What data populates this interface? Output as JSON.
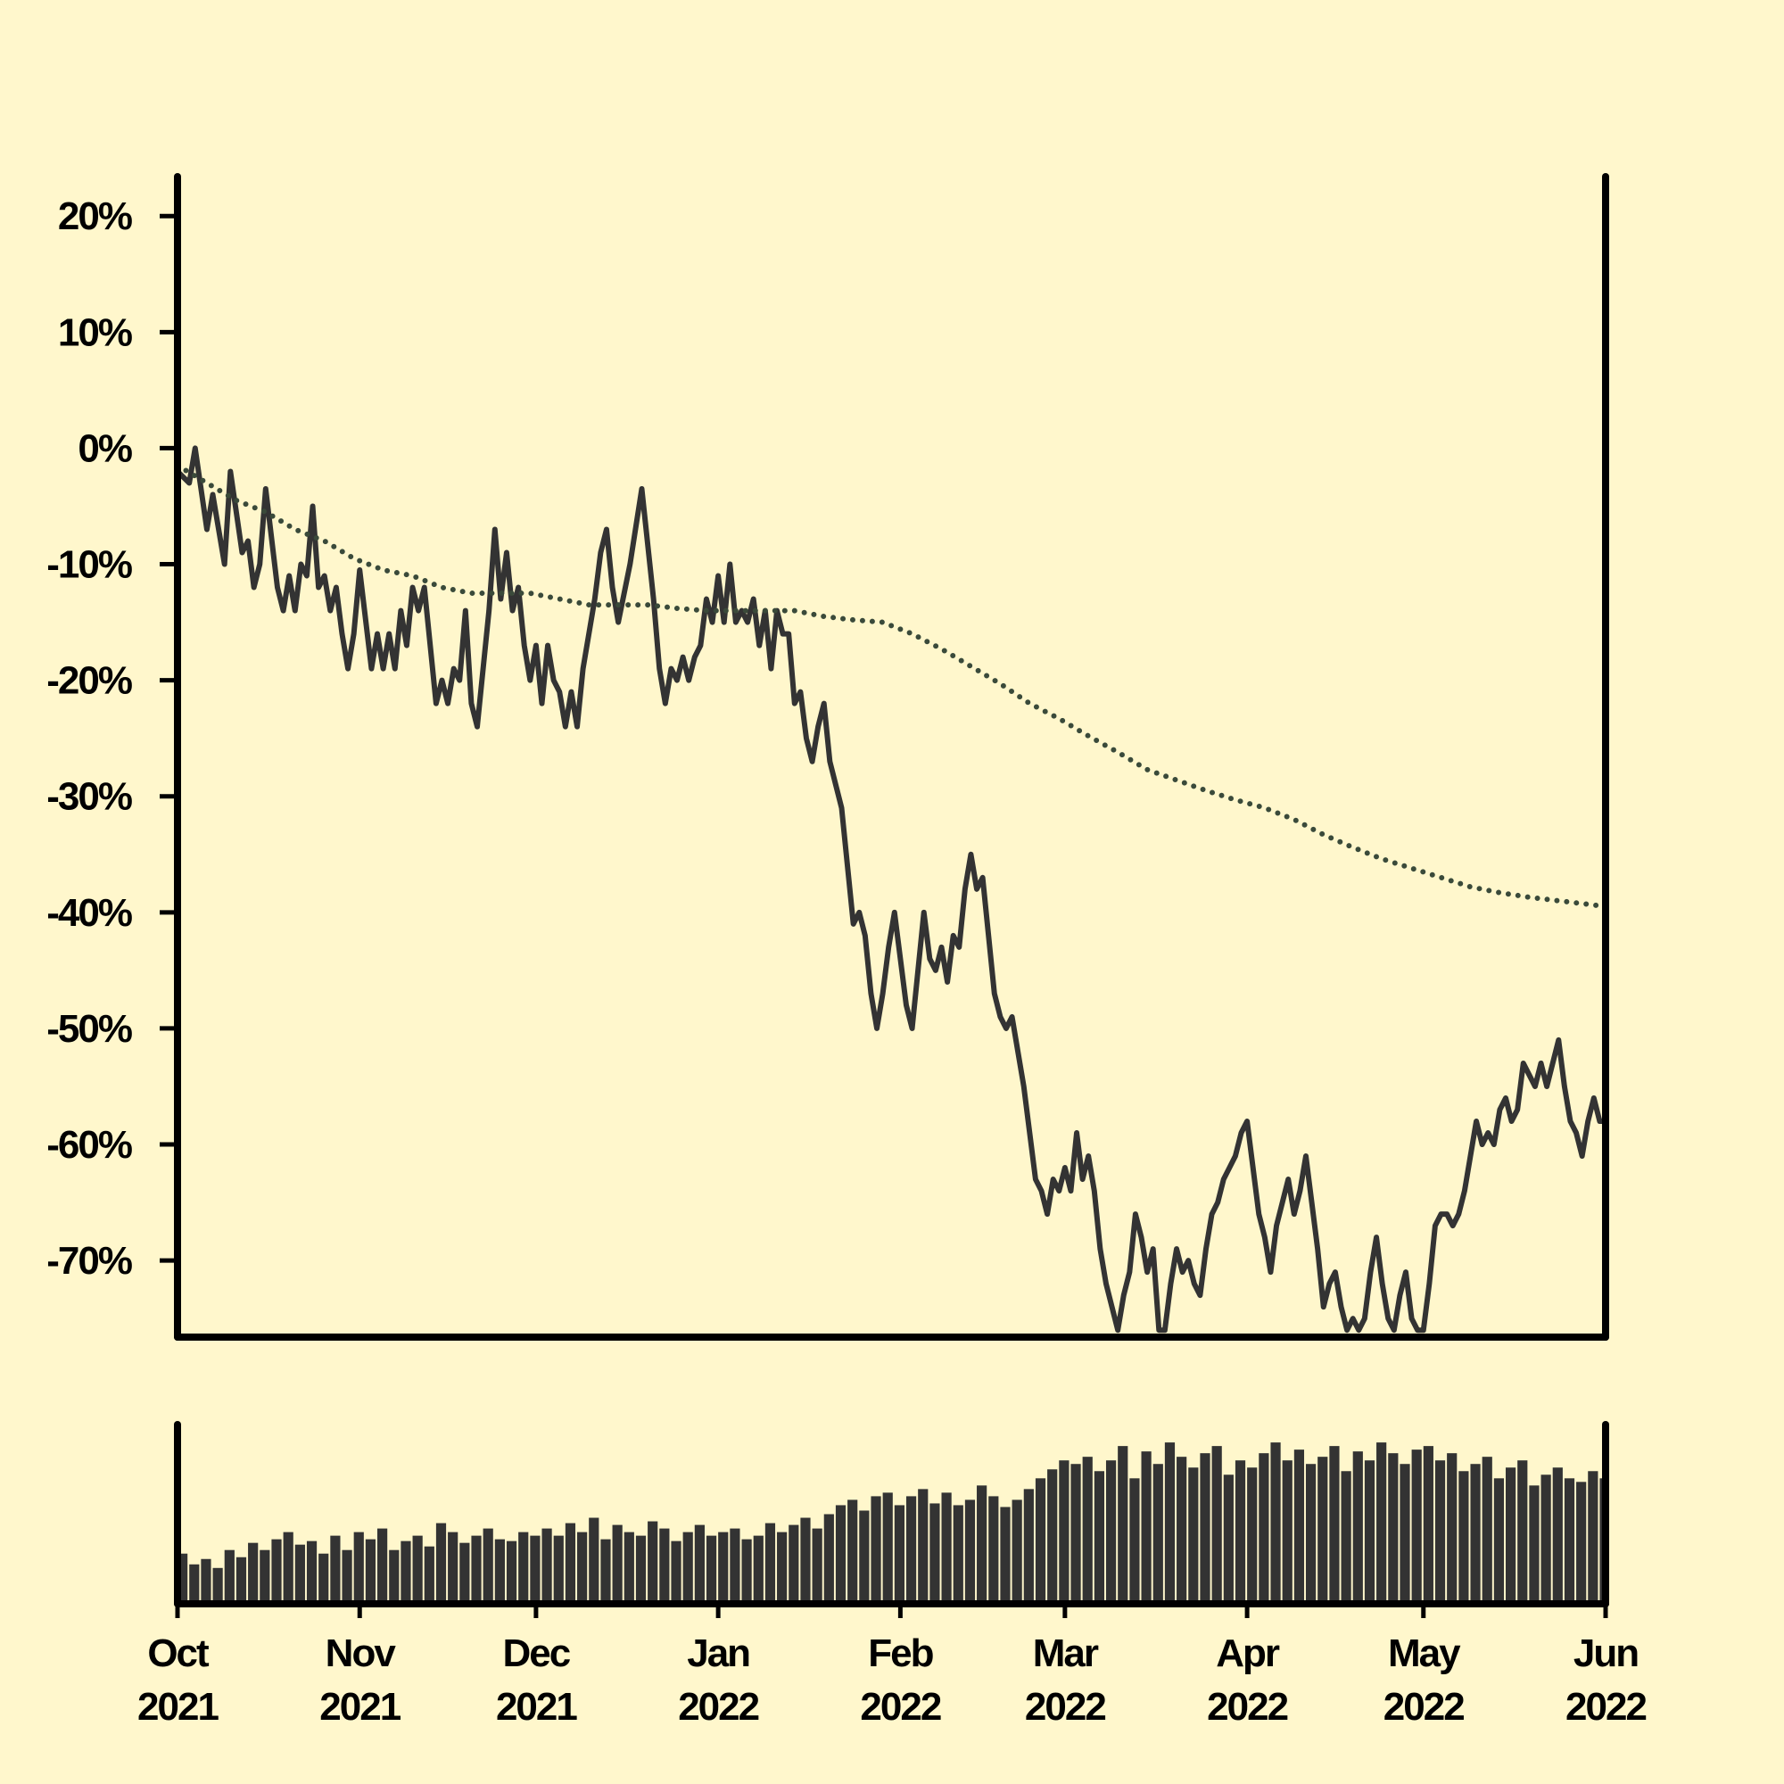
{
  "chart_data": [
    {
      "type": "line",
      "xlim": [
        0,
        243
      ],
      "ylim": [
        -76.6,
        23.4
      ],
      "yticks": [
        {
          "value": 20,
          "label": "20%"
        },
        {
          "value": 10,
          "label": "10%"
        },
        {
          "value": 0,
          "label": "0%"
        },
        {
          "value": -10,
          "label": "-10%"
        },
        {
          "value": -20,
          "label": "-20%"
        },
        {
          "value": -30,
          "label": "-30%"
        },
        {
          "value": -40,
          "label": "-40%"
        },
        {
          "value": -50,
          "label": "-50%"
        },
        {
          "value": -60,
          "label": "-60%"
        },
        {
          "value": -70,
          "label": "-70%"
        }
      ],
      "series": [
        {
          "color": "#333333",
          "style": "solid",
          "x": [
            0,
            2,
            3,
            5,
            6,
            8,
            9,
            11,
            12,
            13,
            14,
            15,
            17,
            18,
            19,
            20,
            21,
            22,
            23,
            24,
            25,
            26,
            27,
            28,
            29,
            30,
            31,
            33,
            34,
            35,
            36,
            37,
            38,
            39,
            40,
            41,
            42,
            43,
            44,
            45,
            46,
            47,
            48,
            49,
            50,
            51,
            53,
            54,
            55,
            56,
            57,
            58,
            59,
            60,
            61,
            62,
            63,
            64,
            65,
            66,
            67,
            68,
            69,
            71,
            72,
            73,
            74,
            75,
            77,
            79,
            81,
            82,
            83,
            84,
            85,
            86,
            87,
            88,
            89,
            90,
            91,
            92,
            93,
            94,
            95,
            96,
            97,
            98,
            99,
            100,
            101,
            102,
            103,
            104,
            105,
            106,
            107,
            108,
            109,
            110,
            111,
            112,
            113,
            115,
            116,
            117,
            118,
            119,
            120,
            121,
            122,
            124,
            125,
            126,
            127,
            128,
            129,
            130,
            131,
            132,
            133,
            134,
            135,
            136,
            137,
            138,
            139,
            140,
            141,
            142,
            143,
            144,
            145,
            146,
            147,
            148,
            149,
            150,
            151,
            152,
            153,
            154,
            155,
            156,
            157,
            158,
            159,
            160,
            161,
            162,
            163,
            164,
            165,
            166,
            167,
            168,
            169,
            170,
            171,
            172,
            173,
            174,
            175,
            176,
            177,
            178,
            179,
            180,
            181,
            182,
            183,
            184,
            185,
            186,
            187,
            188,
            189,
            190,
            191,
            192,
            193,
            194,
            195,
            196,
            197,
            198,
            199,
            200,
            201,
            202,
            203,
            204,
            205,
            206,
            207,
            208,
            209,
            210,
            211,
            212,
            213,
            214,
            215,
            216,
            217,
            218,
            219,
            220,
            221,
            222,
            223,
            224,
            225,
            226,
            227,
            228,
            229,
            230,
            231,
            232,
            233,
            234,
            235,
            236,
            237,
            238,
            239,
            240,
            241,
            242,
            243
          ],
          "values": [
            -2,
            -3,
            0,
            -7,
            -4,
            -10,
            -2,
            -9,
            -8,
            -12,
            -10,
            -3.5,
            -12,
            -14,
            -11,
            -14,
            -10,
            -11,
            -5,
            -12,
            -11,
            -14,
            -12,
            -16,
            -19,
            -16,
            -10.5,
            -19,
            -16,
            -19,
            -16,
            -19,
            -14,
            -17,
            -12,
            -14,
            -12,
            -17,
            -22,
            -20,
            -22,
            -19,
            -20,
            -14,
            -22,
            -24,
            -14,
            -7,
            -13,
            -9,
            -14,
            -12,
            -17,
            -20,
            -17,
            -22,
            -17,
            -20,
            -21,
            -24,
            -21,
            -24,
            -19,
            -13,
            -9,
            -7,
            -12,
            -15,
            -10,
            -3.5,
            -13,
            -19,
            -22,
            -19,
            -20,
            -18,
            -20,
            -18,
            -17,
            -13,
            -15,
            -11,
            -15,
            -10,
            -15,
            -14,
            -15,
            -13,
            -17,
            -14,
            -19,
            -14,
            -16,
            -16,
            -22,
            -21,
            -25,
            -27,
            -24,
            -22,
            -27,
            -29,
            -31,
            -41,
            -40,
            -42,
            -47,
            -50,
            -47,
            -43,
            -40,
            -48,
            -50,
            -45,
            -40,
            -44,
            -45,
            -43,
            -46,
            -42,
            -43,
            -38,
            -35,
            -38,
            -37,
            -42,
            -47,
            -49,
            -50,
            -49,
            -52,
            -55,
            -59,
            -63,
            -64,
            -66,
            -63,
            -64,
            -62,
            -64,
            -59,
            -63,
            -61,
            -64,
            -69,
            -72,
            -74,
            -76,
            -73,
            -71,
            -66,
            -68,
            -71,
            -69,
            -76,
            -76,
            -72,
            -69,
            -71,
            -70,
            -72,
            -73,
            -69,
            -66,
            -65,
            -63,
            -62,
            -61,
            -59,
            -58,
            -62,
            -66,
            -68,
            -71,
            -67,
            -65,
            -63,
            -66,
            -64,
            -61,
            -65,
            -69,
            -74,
            -72,
            -71,
            -74,
            -76,
            -75,
            -76,
            -75,
            -71,
            -68,
            -72,
            -75,
            -76,
            -73,
            -71,
            -75,
            -76,
            -76,
            -72,
            -67,
            -66,
            -66,
            -67,
            -66,
            -64,
            -61,
            -58,
            -60,
            -59,
            -60,
            -57,
            -56,
            -58,
            -57,
            -53,
            -54,
            -55,
            -53,
            -55,
            -53,
            -51,
            -55,
            -58,
            -59,
            -61,
            -58,
            -56,
            -58,
            -58
          ]
        },
        {
          "color": "#3a4a3a",
          "style": "dotted",
          "x": [
            0,
            5,
            10,
            15,
            20,
            25,
            30,
            35,
            40,
            45,
            50,
            55,
            60,
            65,
            70,
            75,
            80,
            85,
            90,
            95,
            100,
            105,
            110,
            115,
            120,
            125,
            130,
            135,
            140,
            145,
            150,
            155,
            160,
            165,
            170,
            175,
            180,
            185,
            190,
            195,
            200,
            205,
            210,
            215,
            220,
            225,
            230,
            235,
            240,
            243
          ],
          "values": [
            -1.5,
            -3,
            -4.5,
            -5.5,
            -7,
            -8,
            -9.5,
            -10.5,
            -11,
            -12,
            -12.5,
            -12.5,
            -12.5,
            -13,
            -13.5,
            -13.5,
            -13.5,
            -13.8,
            -14,
            -14,
            -14,
            -14,
            -14.5,
            -14.8,
            -15,
            -16,
            -17.3,
            -18.8,
            -20.3,
            -22,
            -23.3,
            -24.8,
            -26.2,
            -27.7,
            -28.6,
            -29.5,
            -30.3,
            -31,
            -32,
            -33.3,
            -34.4,
            -35.4,
            -36.2,
            -37,
            -37.8,
            -38.3,
            -38.7,
            -39,
            -39.3,
            -39.5
          ]
        }
      ]
    },
    {
      "type": "bar",
      "color": "#333333",
      "xlim": [
        0,
        243
      ],
      "ylim": [
        0,
        100
      ],
      "xticks": [
        {
          "value": 0,
          "label": "Oct 2021"
        },
        {
          "value": 31,
          "label": "Nov 2021"
        },
        {
          "value": 61,
          "label": "Dec 2021"
        },
        {
          "value": 92,
          "label": "Jan 2022"
        },
        {
          "value": 123,
          "label": "Feb 2022"
        },
        {
          "value": 151,
          "label": "Mar 2022"
        },
        {
          "value": 182,
          "label": "Apr 2022"
        },
        {
          "value": 212,
          "label": "May 2022"
        },
        {
          "value": 243,
          "label": "Jun 2022"
        }
      ],
      "x": [
        0,
        2,
        4,
        6,
        8,
        10,
        12,
        14,
        16,
        18,
        20,
        22,
        24,
        26,
        28,
        30,
        32,
        34,
        36,
        38,
        40,
        42,
        44,
        46,
        48,
        50,
        52,
        54,
        56,
        58,
        60,
        62,
        64,
        66,
        68,
        70,
        72,
        74,
        76,
        78,
        80,
        82,
        84,
        86,
        88,
        90,
        92,
        94,
        96,
        98,
        100,
        102,
        104,
        106,
        108,
        110,
        112,
        114,
        116,
        118,
        120,
        122,
        124,
        126,
        128,
        130,
        132,
        134,
        136,
        138,
        140,
        142,
        144,
        146,
        148,
        150,
        152,
        154,
        156,
        158,
        160,
        162,
        164,
        166,
        168,
        170,
        172,
        174,
        176,
        178,
        180,
        182,
        184,
        186,
        188,
        190,
        192,
        194,
        196,
        198,
        200,
        202,
        204,
        206,
        208,
        210,
        212,
        214,
        216,
        218,
        220,
        222,
        224,
        226,
        228,
        230,
        232,
        234,
        236,
        238,
        240,
        242
      ],
      "values": [
        28,
        22,
        25,
        20,
        30,
        26,
        34,
        30,
        36,
        40,
        33,
        35,
        28,
        38,
        30,
        40,
        36,
        42,
        30,
        35,
        38,
        32,
        45,
        40,
        34,
        38,
        42,
        36,
        35,
        40,
        38,
        42,
        38,
        45,
        40,
        48,
        36,
        44,
        40,
        38,
        46,
        42,
        35,
        40,
        44,
        38,
        40,
        42,
        36,
        38,
        45,
        40,
        44,
        48,
        42,
        50,
        55,
        58,
        52,
        60,
        62,
        55,
        60,
        64,
        56,
        62,
        55,
        58,
        66,
        60,
        54,
        58,
        64,
        70,
        75,
        80,
        78,
        82,
        74,
        80,
        88,
        70,
        85,
        78,
        90,
        82,
        76,
        84,
        88,
        72,
        80,
        76,
        84,
        90,
        80,
        86,
        78,
        82,
        88,
        74,
        85,
        80,
        90,
        84,
        78,
        86,
        88,
        80,
        84,
        74,
        78,
        82,
        70,
        76,
        80,
        66,
        72,
        76,
        70,
        68,
        74,
        70
      ]
    }
  ]
}
